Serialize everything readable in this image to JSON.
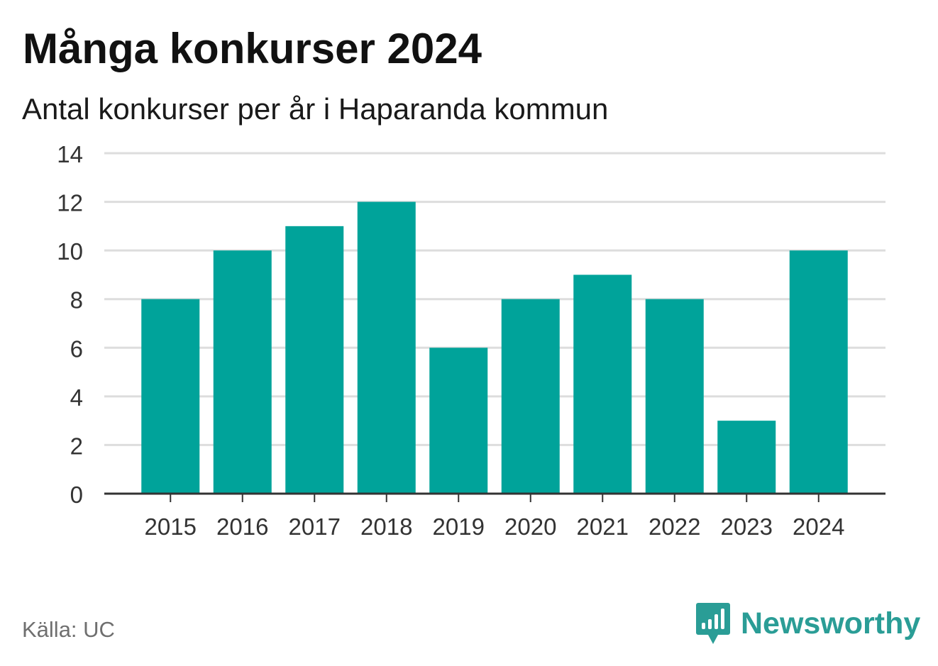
{
  "title": "Många konkurser 2024",
  "subtitle": "Antal konkurser per år i Haparanda kommun",
  "source": "Källa: UC",
  "brand": {
    "name": "Newsworthy",
    "icon": "newsworthy-logo-icon",
    "color": "#2a9d96"
  },
  "chart_data": {
    "type": "bar",
    "categories": [
      "2015",
      "2016",
      "2017",
      "2018",
      "2019",
      "2020",
      "2021",
      "2022",
      "2023",
      "2024"
    ],
    "values": [
      8,
      10,
      11,
      12,
      6,
      8,
      9,
      8,
      3,
      10
    ],
    "title": "Många konkurser 2024",
    "subtitle": "Antal konkurser per år i Haparanda kommun",
    "xlabel": "",
    "ylabel": "",
    "ylim": [
      0,
      14
    ],
    "yticks": [
      0,
      2,
      4,
      6,
      8,
      10,
      12,
      14
    ],
    "grid": true,
    "legend": "none",
    "bar_color": "#00a39a",
    "grid_color": "#dddddd",
    "axis_color": "#333333"
  }
}
